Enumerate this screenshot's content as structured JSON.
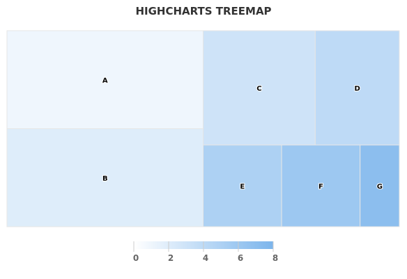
{
  "chart_data": {
    "type": "treemap",
    "title": "HIGHCHARTS TREEMAP",
    "points": [
      {
        "name": "A",
        "value": 6,
        "colorValue": 1
      },
      {
        "name": "B",
        "value": 6,
        "colorValue": 2
      },
      {
        "name": "C",
        "value": 4,
        "colorValue": 3
      },
      {
        "name": "D",
        "value": 3,
        "colorValue": 4
      },
      {
        "name": "E",
        "value": 2,
        "colorValue": 5
      },
      {
        "name": "F",
        "value": 2,
        "colorValue": 6
      },
      {
        "name": "G",
        "value": 1,
        "colorValue": 7
      }
    ],
    "colorAxis": {
      "min": 0,
      "max": 8,
      "ticks": [
        "0",
        "2",
        "4",
        "6",
        "8"
      ],
      "minColor": "#FFFFFF",
      "maxColor": "#7CB5EC"
    },
    "legend_placement": "bottom-center"
  }
}
